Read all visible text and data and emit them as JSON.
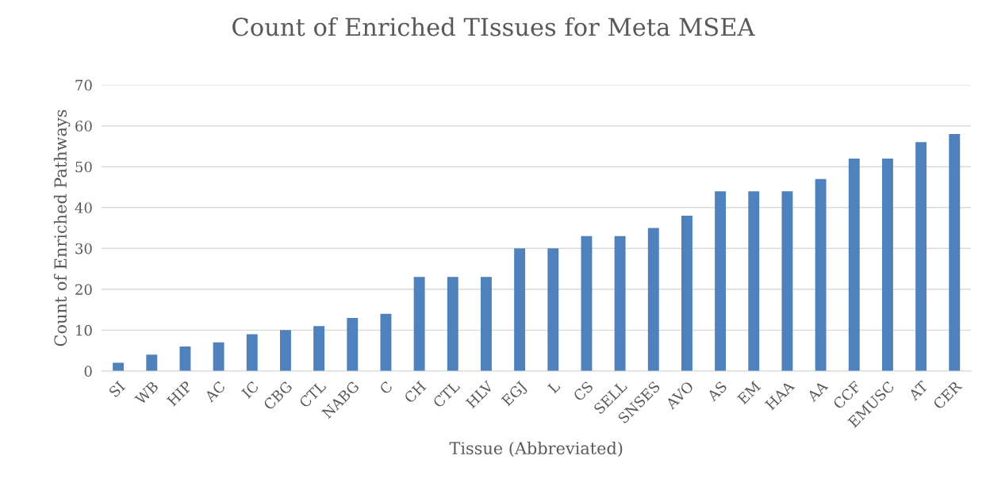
{
  "chart_data": {
    "type": "bar",
    "title": "Count of Enriched TIssues for Meta MSEA",
    "xlabel": "Tissue (Abbreviated)",
    "ylabel": "Count of Enriched Pathways",
    "categories": [
      "SI",
      "WB",
      "HIP",
      "AC",
      "IC",
      "CBG",
      "CTL",
      "NABG",
      "C",
      "CH",
      "CTL",
      "HLV",
      "EGJ",
      "L",
      "CS",
      "SELL",
      "SNSES",
      "AVO",
      "AS",
      "EM",
      "HAA",
      "AA",
      "CCF",
      "EMUSC",
      "AT",
      "CER"
    ],
    "values": [
      2,
      4,
      6,
      7,
      9,
      10,
      11,
      13,
      14,
      23,
      23,
      23,
      30,
      30,
      33,
      33,
      35,
      38,
      44,
      44,
      44,
      47,
      52,
      52,
      56,
      58
    ],
    "color": "#4f81bd",
    "ylim": [
      0,
      70
    ],
    "yticks": [
      0,
      10,
      20,
      30,
      40,
      50,
      60,
      70
    ],
    "grid": "y"
  }
}
